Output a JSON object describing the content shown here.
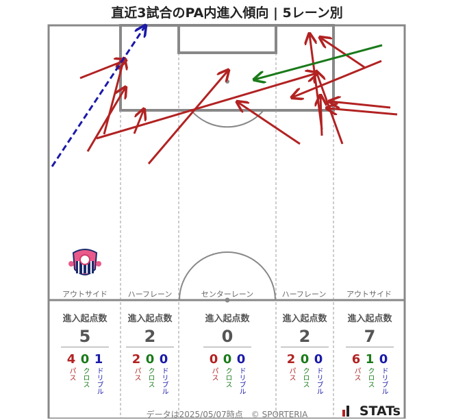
{
  "title": "直近3試合のPA内進入傾向 | 5レーン別",
  "lanes": [
    {
      "name": "アウトサイド",
      "header": "進入起点数",
      "total": "5",
      "pass": "4",
      "cross": "0",
      "dribble": "1"
    },
    {
      "name": "ハーフレーン",
      "header": "進入起点数",
      "total": "2",
      "pass": "2",
      "cross": "0",
      "dribble": "0"
    },
    {
      "name": "センターレーン",
      "header": "進入起点数",
      "total": "0",
      "pass": "0",
      "cross": "0",
      "dribble": "0"
    },
    {
      "name": "ハーフレーン",
      "header": "進入起点数",
      "total": "2",
      "pass": "2",
      "cross": "0",
      "dribble": "0"
    },
    {
      "name": "アウトサイド",
      "header": "進入起点数",
      "total": "7",
      "pass": "6",
      "cross": "1",
      "dribble": "0"
    }
  ],
  "labels": {
    "pass": "パス",
    "cross": "クロス",
    "dribble": "ドリブル"
  },
  "footer": "データは2025/05/07時点　© SPORTERIA",
  "brand": "STATs",
  "colors": {
    "pass": "#b22222",
    "cross": "#1a7a1a",
    "dribble": "#1a1aa8",
    "lines": "#888888"
  },
  "chart_data": {
    "type": "scatter",
    "title": "直近3試合のPA内進入傾向 | 5レーン別",
    "series": [
      {
        "name": "パス",
        "color": "#b22222",
        "arrows": [
          [
            117,
            114,
            183,
            88
          ],
          [
            128,
            221,
            183,
            128
          ],
          [
            152,
            196,
            181,
            86
          ],
          [
            196,
            195,
            210,
            160
          ],
          [
            141,
            202,
            462,
            107
          ],
          [
            217,
            239,
            333,
            103
          ],
          [
            438,
            210,
            347,
            149
          ],
          [
            557,
            89,
            427,
            142
          ],
          [
            532,
            98,
            468,
            55
          ],
          [
            470,
            189,
            452,
            50
          ],
          [
            500,
            210,
            462,
            105
          ],
          [
            470,
            198,
            468,
            140
          ],
          [
            570,
            157,
            482,
            148
          ],
          [
            580,
            167,
            478,
            158
          ]
        ]
      },
      {
        "name": "クロス",
        "color": "#1a7a1a",
        "arrows": [
          [
            558,
            66,
            372,
            116
          ]
        ]
      },
      {
        "name": "ドリブル",
        "color": "#1a1aa8",
        "arrows": [
          [
            76,
            243,
            212,
            38
          ]
        ]
      }
    ]
  }
}
